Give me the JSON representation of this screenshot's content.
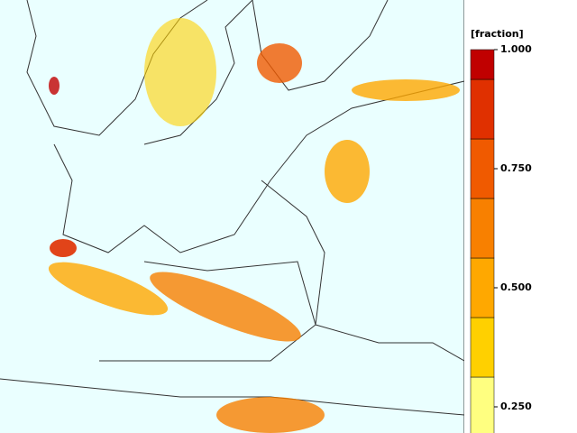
{
  "colorbar": {
    "label": "[fraction]",
    "clim": [
      0,
      1
    ],
    "levels": [
      0.1875,
      0.3125,
      0.4375,
      0.5625,
      0.6875,
      0.8125,
      0.9375,
      1
    ],
    "colors": [
      "#ffff80",
      "#ffd000",
      "#ffa800",
      "#f88000",
      "#f05a00",
      "#e03000",
      "#c00000"
    ],
    "ticks": [
      {
        "value": 1,
        "label": "1.000"
      },
      {
        "value": 0.75,
        "label": "0.750"
      },
      {
        "value": 0.5,
        "label": "0.500"
      },
      {
        "value": 0.25,
        "label": "0.250"
      }
    ]
  }
}
